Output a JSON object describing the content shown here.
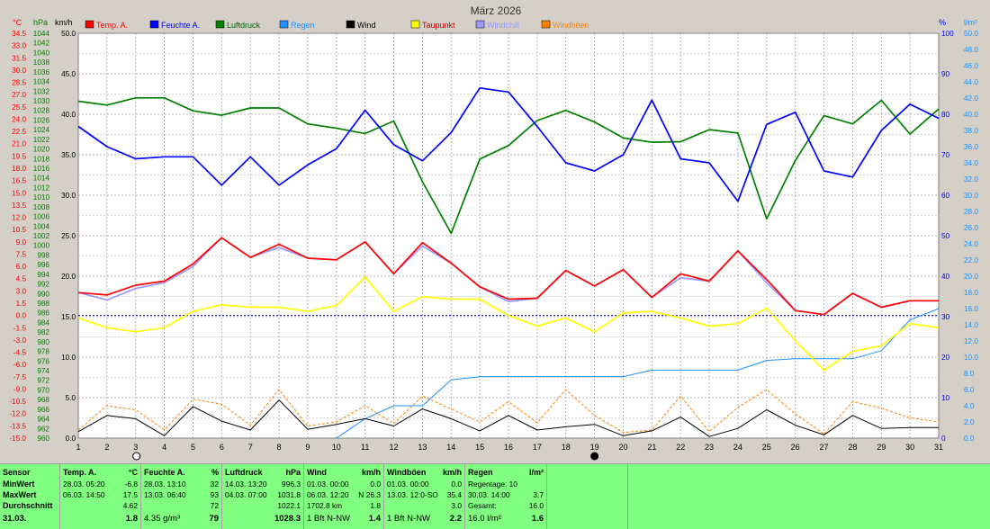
{
  "title": "März 2026",
  "axes": {
    "left_units": [
      "°C",
      "hPa",
      "km/h"
    ],
    "right_units": [
      "%",
      "l/m²"
    ],
    "temp_ticks": [
      "34.5",
      "33.0",
      "31.5",
      "30.0",
      "28.5",
      "27.0",
      "25.5",
      "24.0",
      "22.5",
      "21.0",
      "19.5",
      "18.0",
      "16.5",
      "15.0",
      "13.5",
      "12.0",
      "10.5",
      "9.0",
      "7.5",
      "6.0",
      "4.5",
      "3.0",
      "1.5",
      "0.0",
      "-1.5",
      "-3.0",
      "-4.5",
      "-6.0",
      "-7.5",
      "-9.0",
      "-10.5",
      "-12.0",
      "-13.5",
      "-15.0"
    ],
    "hpa_ticks": [
      "1044",
      "1042",
      "1040",
      "1038",
      "1036",
      "1034",
      "1032",
      "1030",
      "1028",
      "1026",
      "1024",
      "1022",
      "1020",
      "1018",
      "1016",
      "1014",
      "1012",
      "1010",
      "1008",
      "1006",
      "1004",
      "1002",
      "1000",
      "998",
      "996",
      "994",
      "992",
      "990",
      "988",
      "986",
      "984",
      "982",
      "980",
      "978",
      "976",
      "974",
      "972",
      "970",
      "968",
      "966",
      "964",
      "962",
      "960"
    ],
    "kmh_ticks": [
      "50.0",
      "45.0",
      "40.0",
      "35.0",
      "30.0",
      "25.0",
      "20.0",
      "15.0",
      "10.0",
      "5.0",
      "0.0"
    ],
    "pct_ticks": [
      "100",
      "90",
      "80",
      "70",
      "60",
      "50",
      "40",
      "30",
      "20",
      "10",
      "0"
    ],
    "rain_ticks": [
      "50.0",
      "48.0",
      "46.0",
      "44.0",
      "42.0",
      "40.0",
      "38.0",
      "36.0",
      "34.0",
      "32.0",
      "30.0",
      "28.0",
      "26.0",
      "24.0",
      "22.0",
      "20.0",
      "18.0",
      "16.0",
      "14.0",
      "12.0",
      "10.0",
      "8.0",
      "6.0",
      "4.0",
      "2.0",
      "0.0"
    ]
  },
  "chart_data": {
    "type": "line",
    "title": "März 2026",
    "x": [
      1,
      2,
      3,
      4,
      5,
      6,
      7,
      8,
      9,
      10,
      11,
      12,
      13,
      14,
      15,
      16,
      17,
      18,
      19,
      20,
      21,
      22,
      23,
      24,
      25,
      26,
      27,
      28,
      29,
      30,
      31
    ],
    "xlim": [
      1,
      31
    ],
    "grid": true,
    "legend_position": "top",
    "series": [
      {
        "name": "Temp. A.",
        "color": "#ff0000",
        "axis": "temp",
        "ylim": [
          -15,
          34.5
        ],
        "values": [
          2.8,
          2.5,
          3.7,
          4.2,
          6.3,
          9.5,
          7.1,
          8.7,
          7.0,
          6.8,
          9.0,
          5.1,
          8.9,
          6.4,
          3.5,
          2.0,
          2.1,
          5.5,
          3.6,
          5.6,
          2.2,
          5.1,
          4.2,
          7.9,
          4.4,
          0.6,
          0.1,
          2.7,
          1.0,
          1.8,
          1.8
        ]
      },
      {
        "name": "Feuchte A.",
        "color": "#0000ff",
        "axis": "pct",
        "ylim": [
          0,
          100
        ],
        "values": [
          77,
          72,
          69,
          69.5,
          69.5,
          62.5,
          69.5,
          62.5,
          67.5,
          71.5,
          81,
          72.5,
          68.5,
          75.5,
          86.5,
          85.5,
          77,
          68,
          66,
          70,
          83.5,
          69,
          68,
          58.5,
          77.5,
          80.5,
          66,
          64.5,
          76,
          82.5,
          79
        ]
      },
      {
        "name": "Luftdruck",
        "color": "#008000",
        "axis": "hpa",
        "ylim": [
          960,
          1044
        ],
        "values": [
          1029.9,
          1029.1,
          1030.6,
          1030.6,
          1027.9,
          1027.0,
          1028.5,
          1028.5,
          1025.2,
          1024.3,
          1023.2,
          1025.8,
          1013.2,
          1002.5,
          1017.9,
          1020.7,
          1025.9,
          1028.0,
          1025.6,
          1022.3,
          1021.4,
          1021.5,
          1024.0,
          1023.3,
          1005.5,
          1017.6,
          1026.9,
          1025.2,
          1030.1,
          1023.1,
          1028.3
        ]
      },
      {
        "name": "Regen",
        "color": "#1e90ff",
        "axis": "rain",
        "ylim": [
          0,
          50
        ],
        "values": [
          null,
          null,
          null,
          null,
          null,
          null,
          null,
          null,
          null,
          0,
          2.4,
          4.0,
          4.0,
          7.2,
          7.6,
          7.6,
          7.6,
          7.6,
          7.6,
          7.6,
          8.4,
          8.4,
          8.4,
          8.4,
          9.6,
          9.8,
          9.8,
          9.8,
          10.8,
          14.6,
          16.0
        ]
      },
      {
        "name": "Wind",
        "color": "#000000",
        "axis": "kmh",
        "ylim": [
          0,
          50
        ],
        "values": [
          0.8,
          2.8,
          2.4,
          0.3,
          3.9,
          2.1,
          1.0,
          4.7,
          1.1,
          1.7,
          2.4,
          1.5,
          3.6,
          2.4,
          0.9,
          2.8,
          1.0,
          1.4,
          1.7,
          0.3,
          0.9,
          2.6,
          0.2,
          1.2,
          3.5,
          1.6,
          0.4,
          2.8,
          1.2,
          1.3,
          1.3
        ]
      },
      {
        "name": "Taupunkt",
        "color": "#ffff00",
        "axis": "temp",
        "ylim": [
          -15,
          34.5
        ],
        "values": [
          -0.3,
          -1.5,
          -2.0,
          -1.5,
          0.5,
          1.3,
          1.0,
          1.0,
          0.5,
          1.2,
          4.7,
          0.5,
          2.3,
          2.0,
          2.0,
          0.0,
          -1.3,
          -0.3,
          -2.0,
          0.3,
          0.5,
          -0.3,
          -1.3,
          -1.0,
          0.9,
          -3.1,
          -6.7,
          -4.4,
          -3.7,
          -1.0,
          -1.5
        ]
      },
      {
        "name": "Windchill",
        "color": "#9999ff",
        "axis": "temp",
        "ylim": [
          -15,
          34.5
        ],
        "values": [
          2.8,
          1.9,
          3.3,
          4.0,
          6.0,
          9.5,
          7.1,
          8.3,
          7.0,
          6.8,
          9.0,
          5.1,
          8.5,
          6.4,
          3.5,
          1.7,
          2.1,
          5.5,
          3.6,
          5.6,
          2.2,
          4.6,
          4.2,
          7.9,
          4.0,
          0.6,
          0.1,
          2.7,
          1.0,
          1.8,
          1.8
        ]
      },
      {
        "name": "Windböen",
        "color": "#ff8000",
        "axis": "kmh",
        "ylim": [
          0,
          50
        ],
        "values": [
          1.0,
          4.0,
          3.5,
          1.0,
          4.8,
          4.2,
          1.6,
          6.0,
          1.5,
          2.0,
          4.0,
          1.8,
          5.2,
          3.6,
          2.0,
          4.5,
          1.9,
          6.0,
          2.8,
          0.7,
          1.0,
          5.2,
          0.8,
          3.8,
          6.0,
          3.0,
          0.5,
          4.5,
          3.7,
          2.5,
          2.0
        ]
      }
    ],
    "moon_markers": [
      {
        "day": 3.5,
        "phase": "full"
      },
      {
        "day": 19,
        "phase": "new"
      }
    ]
  },
  "stats": {
    "sensor": {
      "header": "Sensor",
      "min": "MinWert",
      "max": "MaxWert",
      "avg": "Durchschnitt",
      "date": "31.03."
    },
    "temp": {
      "header": "Temp. A.",
      "unit": "°C",
      "min_date": "28.03.",
      "min_time": "05:20",
      "min_val": "-6.8",
      "max_date": "06.03.",
      "max_time": "14:50",
      "max_val": "17.5",
      "avg": "4.62",
      "cur": "1.8"
    },
    "hum": {
      "header": "Feuchte A.",
      "unit": "%",
      "min_date": "28.03.",
      "min_time": "13:10",
      "min_val": "32",
      "max_date": "13.03.",
      "max_time": "06:40",
      "max_val": "93",
      "avg": "72",
      "abs": "4.35 g/m³",
      "cur": "79"
    },
    "press": {
      "header": "Luftdruck",
      "unit": "hPa",
      "min_date": "14.03.",
      "min_time": "13:20",
      "min_val": "996.3",
      "max_date": "04.03.",
      "max_time": "07:00",
      "max_val": "1031.8",
      "avg": "1022.1",
      "cur": "1028.3"
    },
    "wind": {
      "header": "Wind",
      "unit": "km/h",
      "min_date": "01.03.",
      "min_time": "00:00",
      "min_val": "0.0",
      "max_date": "06.03.",
      "max_time": "12:20",
      "max_dir": "N",
      "max_val": "26.3",
      "dist": "1702.8 km",
      "avg": "1.8",
      "bft": "1 Bft N-NW",
      "cur": "1.4"
    },
    "gust": {
      "header": "Windböen",
      "unit": "km/h",
      "min_date": "01.03.",
      "min_time": "00:00",
      "min_val": "0.0",
      "max_date": "13.03.",
      "max_time": "12:0-SO",
      "max_val": "35.4",
      "avg": "3.0",
      "bft": "1 Bft N-NW",
      "cur": "2.2"
    },
    "rain": {
      "header": "Regen",
      "unit": "l/m²",
      "days": "Regentage: 10",
      "max_date": "30.03.",
      "max_time": "14:00",
      "max_val": "3.7",
      "total_label": "Gesamt:",
      "total": "16.0",
      "cur_label": "16.0 l/m²",
      "cur": "1.6"
    }
  }
}
